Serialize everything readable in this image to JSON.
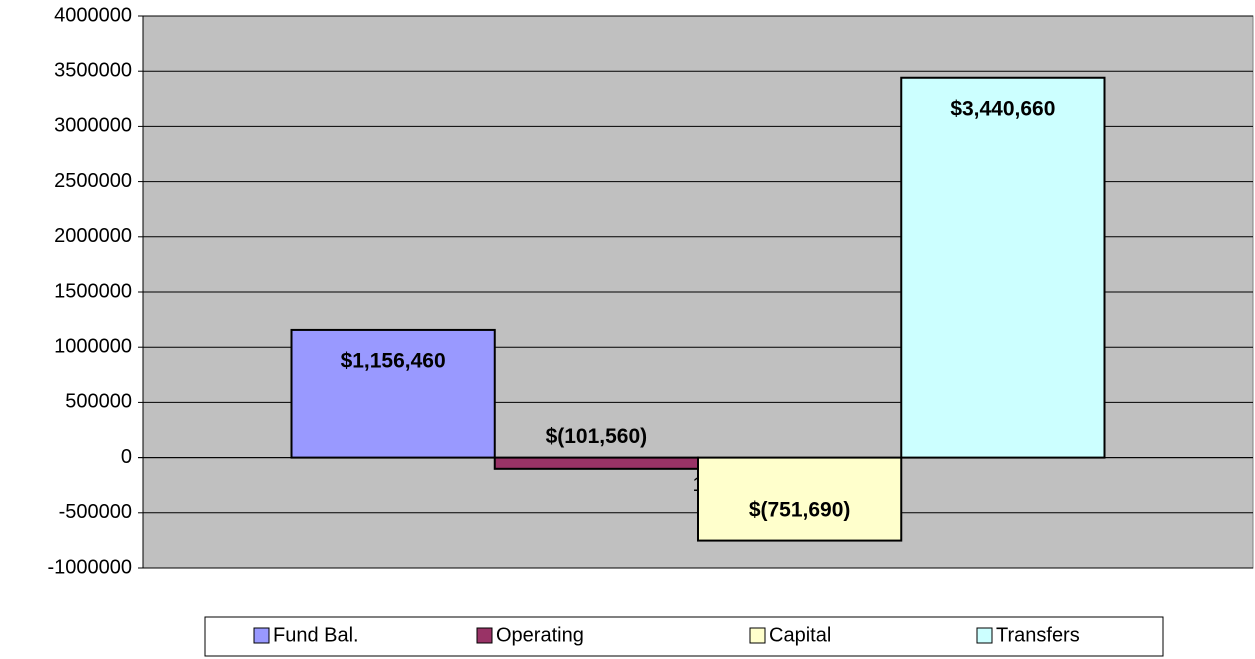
{
  "chart_data": {
    "type": "bar",
    "categories": [
      "1"
    ],
    "series": [
      {
        "name": "Fund Bal.",
        "color": "#9999ff",
        "values": [
          1156460
        ],
        "value_labels": [
          "$1,156,460"
        ]
      },
      {
        "name": "Operating",
        "color": "#993366",
        "values": [
          -101560
        ],
        "value_labels": [
          "$(101,560)"
        ]
      },
      {
        "name": "Capital",
        "color": "#ffffcc",
        "values": [
          -751690
        ],
        "value_labels": [
          "$(751,690)"
        ]
      },
      {
        "name": "Transfers",
        "color": "#ccffff",
        "values": [
          3440660
        ],
        "value_labels": [
          "$3,440,660"
        ]
      }
    ],
    "ylim": [
      -1000000,
      4000000
    ],
    "yticks": [
      -1000000,
      -500000,
      0,
      500000,
      1000000,
      1500000,
      2000000,
      2500000,
      3000000,
      3500000,
      4000000
    ],
    "grid": true,
    "legend": "bottom"
  }
}
